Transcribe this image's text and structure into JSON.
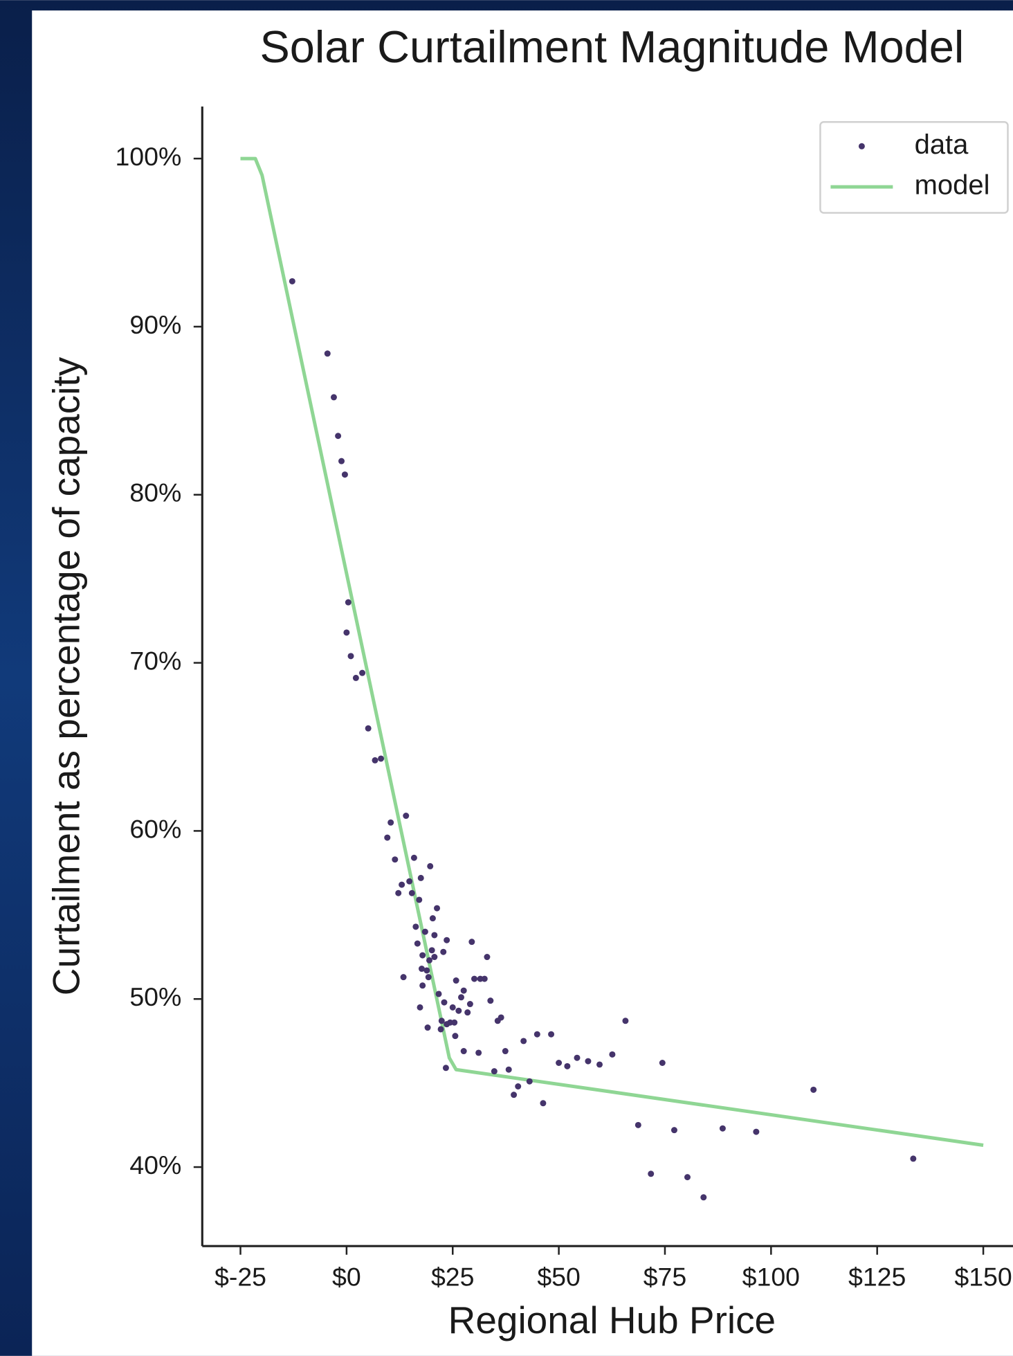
{
  "chart_data": {
    "type": "scatter",
    "title": "Solar Curtailment Magnitude Model",
    "x_label": "Regional Hub Price",
    "y_label": "Curtailment as percentage of capacity",
    "xlim": [
      -34,
      157
    ],
    "ylim": [
      35.3,
      103.1
    ],
    "xticks": [
      {
        "value": -25,
        "label": "$-25"
      },
      {
        "value": 0,
        "label": "$0"
      },
      {
        "value": 25,
        "label": "$25"
      },
      {
        "value": 50,
        "label": "$50"
      },
      {
        "value": 75,
        "label": "$75"
      },
      {
        "value": 100,
        "label": "$100"
      },
      {
        "value": 125,
        "label": "$125"
      },
      {
        "value": 150,
        "label": "$150"
      }
    ],
    "yticks": [
      {
        "value": 40,
        "label": "40%"
      },
      {
        "value": 50,
        "label": "50%"
      },
      {
        "value": 60,
        "label": "60%"
      },
      {
        "value": 70,
        "label": "70%"
      },
      {
        "value": 80,
        "label": "80%"
      },
      {
        "value": 90,
        "label": "90%"
      },
      {
        "value": 100,
        "label": "100%"
      }
    ],
    "legend": "upper right",
    "series": [
      {
        "name": "data",
        "type": "scatter",
        "color": "#45346b",
        "x": [
          -12.8,
          -4.5,
          -3.0,
          -2.0,
          -1.2,
          -0.4,
          0.4,
          0.0,
          1.0,
          2.2,
          3.7,
          5.1,
          6.7,
          8.1,
          9.6,
          10.4,
          14.0,
          11.4,
          15.9,
          19.7,
          17.5,
          14.8,
          13.0,
          12.2,
          15.4,
          17.1,
          21.3,
          20.3,
          16.3,
          18.5,
          20.7,
          23.6,
          29.5,
          16.7,
          20.1,
          22.8,
          17.9,
          20.7,
          19.5,
          33.1,
          17.7,
          18.9,
          13.4,
          19.3,
          30.1,
          31.5,
          32.5,
          25.8,
          17.9,
          27.6,
          21.7,
          27.0,
          33.9,
          23.0,
          29.1,
          17.3,
          25.0,
          26.4,
          28.5,
          36.4,
          35.6,
          65.7,
          22.4,
          24.4,
          25.4,
          23.6,
          19.1,
          22.2,
          48.2,
          44.9,
          25.6,
          41.7,
          27.6,
          37.4,
          31.1,
          62.6,
          54.3,
          56.9,
          74.4,
          50.0,
          59.6,
          52.0,
          23.4,
          38.2,
          34.8,
          43.1,
          40.4,
          110.0,
          39.4,
          46.3,
          68.7,
          88.6,
          77.2,
          96.5,
          133.5,
          71.7,
          80.3,
          84.1
        ],
        "values": [
          92.7,
          88.4,
          85.8,
          83.5,
          82.0,
          81.2,
          73.6,
          71.8,
          70.4,
          69.1,
          69.4,
          66.1,
          64.2,
          64.3,
          59.6,
          60.5,
          60.9,
          58.3,
          58.4,
          57.9,
          57.2,
          57.0,
          56.8,
          56.3,
          56.3,
          55.9,
          55.4,
          54.8,
          54.3,
          54.0,
          53.8,
          53.5,
          53.4,
          53.3,
          52.9,
          52.8,
          52.6,
          52.5,
          52.3,
          52.5,
          51.8,
          51.7,
          51.3,
          51.3,
          51.2,
          51.2,
          51.2,
          51.1,
          50.8,
          50.5,
          50.3,
          50.1,
          49.9,
          49.8,
          49.7,
          49.5,
          49.5,
          49.3,
          49.2,
          48.9,
          48.7,
          48.7,
          48.7,
          48.6,
          48.6,
          48.5,
          48.3,
          48.2,
          47.9,
          47.9,
          47.8,
          47.5,
          46.9,
          46.9,
          46.8,
          46.7,
          46.5,
          46.3,
          46.2,
          46.2,
          46.1,
          46.0,
          45.9,
          45.8,
          45.7,
          45.1,
          44.8,
          44.6,
          44.3,
          43.8,
          42.5,
          42.3,
          42.2,
          42.1,
          40.5,
          39.6,
          39.4,
          38.2
        ]
      },
      {
        "name": "model",
        "type": "line",
        "color": "#8fd694",
        "x": [
          -25,
          -21.5,
          -19.9,
          24.2,
          25.8,
          150
        ],
        "values": [
          100,
          100,
          99.0,
          46.5,
          45.8,
          41.3
        ]
      }
    ]
  }
}
